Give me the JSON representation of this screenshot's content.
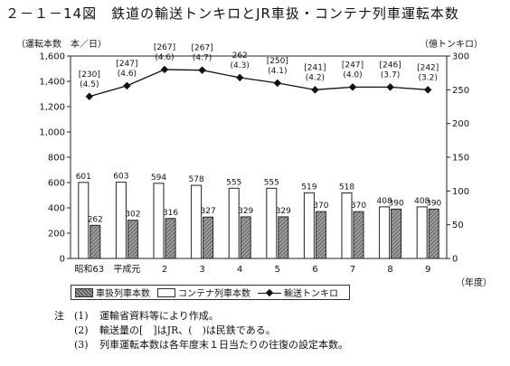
{
  "title": "２－１－14図　鉄道の輸送トンキロとJR車扱・コンテナ列車運転本数",
  "left_unit": "（運転本数　本／日）",
  "right_unit": "（億トンキロ）",
  "x_unit": "（年度）",
  "chart_data": {
    "type": "bar",
    "categories": [
      "昭和63",
      "平成元",
      "2",
      "3",
      "4",
      "5",
      "6",
      "7",
      "8",
      "9"
    ],
    "series": [
      {
        "name": "車扱列車本数",
        "axis": "left",
        "kind": "bar",
        "values": [
          262,
          302,
          316,
          327,
          329,
          329,
          370,
          370,
          390,
          390
        ]
      },
      {
        "name": "コンテナ列車本数",
        "axis": "left",
        "kind": "bar",
        "values": [
          601,
          603,
          594,
          578,
          555,
          555,
          519,
          518,
          408,
          408
        ]
      },
      {
        "name": "輸送トンキロ",
        "axis": "right",
        "kind": "line",
        "values": [
          240,
          256,
          280,
          279,
          268,
          260,
          250,
          254,
          254,
          250
        ],
        "upper_labels": [
          "[230]",
          "[247]",
          "[267]",
          "[267]",
          "262",
          "[250]",
          "[241]",
          "[247]",
          "[246]",
          "[242]"
        ],
        "lower_labels": [
          "(4.5)",
          "(4.6)",
          "(4.6)",
          "(4.7)",
          "(4.3)",
          "(4.1)",
          "(4.2)",
          "(4.0)",
          "(3.7)",
          "(3.2)"
        ]
      }
    ],
    "left_ticks": [
      "0",
      "200",
      "400",
      "600",
      "800",
      "1,000",
      "1,200",
      "1,400",
      "1,600"
    ],
    "right_ticks": [
      "0",
      "50",
      "100",
      "150",
      "200",
      "250",
      "300"
    ],
    "ylim_left": [
      0,
      1600
    ],
    "ylim_right": [
      0,
      300
    ],
    "grid": false,
    "legend_position": "bottom"
  },
  "legend": {
    "item1": "車扱列車本数",
    "item2": "コンテナ列車本数",
    "item3": "輸送トンキロ"
  },
  "notes": {
    "head": "注",
    "items": [
      {
        "num": "(1)",
        "text": "運輸省資料等により作成。"
      },
      {
        "num": "(2)",
        "text": "輸送量の[　]はJR、(　)は民鉄である。"
      },
      {
        "num": "(3)",
        "text": "列車運転本数は各年度末１日当たりの往復の設定本数。"
      }
    ]
  }
}
